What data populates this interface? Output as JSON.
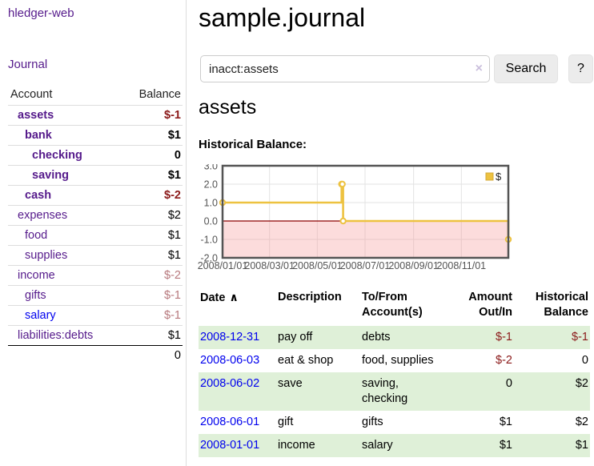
{
  "app": {
    "brand": "hledger-web"
  },
  "sidebar": {
    "journal_link": "Journal",
    "accounts_table": {
      "headers": {
        "account": "Account",
        "balance": "Balance"
      },
      "rows": [
        {
          "name": "assets",
          "balance": "$-1",
          "depth": 1,
          "bold": true,
          "neg": "strong"
        },
        {
          "name": "bank",
          "balance": "$1",
          "depth": 2,
          "bold": true
        },
        {
          "name": "checking",
          "balance": "0",
          "depth": 3,
          "bold": true
        },
        {
          "name": "saving",
          "balance": "$1",
          "depth": 3,
          "bold": true
        },
        {
          "name": "cash",
          "balance": "$-2",
          "depth": 2,
          "bold": true,
          "neg": "strong"
        },
        {
          "name": "expenses",
          "balance": "$2",
          "depth": 1
        },
        {
          "name": "food",
          "balance": "$1",
          "depth": 2
        },
        {
          "name": "supplies",
          "balance": "$1",
          "depth": 2
        },
        {
          "name": "income",
          "balance": "$-2",
          "depth": 1,
          "neg": "soft"
        },
        {
          "name": "gifts",
          "balance": "$-1",
          "depth": 2,
          "neg": "soft"
        },
        {
          "name": "salary",
          "balance": "$-1",
          "depth": 2,
          "neg": "soft",
          "link": "blue"
        },
        {
          "name": "liabilities:debts",
          "balance": "$1",
          "depth": 1
        }
      ],
      "total": "0"
    }
  },
  "header": {
    "title": "sample.journal"
  },
  "search": {
    "value": "inacct:assets",
    "button_label": "Search",
    "help_label": "?"
  },
  "icons": {
    "clear": "×",
    "sort_asc": "∧"
  },
  "account_view": {
    "title": "assets",
    "chart_heading": "Historical Balance:"
  },
  "chart_data": {
    "type": "line",
    "step": true,
    "title": "Historical Balance:",
    "legend": "$",
    "legend_position": "top-right",
    "grid": true,
    "ylim": [
      -2,
      3
    ],
    "y_ticks": [
      "3.0",
      "2.0",
      "1.0",
      "0.0",
      "-1.0",
      "-2.0"
    ],
    "x_range": [
      "2008/01/01",
      "2008/12/31"
    ],
    "x_ticks": [
      "2008/01/01",
      "2008/03/01",
      "2008/05/01",
      "2008/07/01",
      "2008/09/01",
      "2008/11/01"
    ],
    "series": [
      {
        "name": "$",
        "color": "#edc240",
        "points": [
          [
            "2008/01/01",
            1
          ],
          [
            "2008/06/01",
            2
          ],
          [
            "2008/06/02",
            2
          ],
          [
            "2008/06/03",
            0
          ],
          [
            "2008/12/31",
            -1
          ]
        ]
      }
    ],
    "colors": {
      "line": "#edc240",
      "point_fill": "#ffffff",
      "border": "#545454",
      "gridline": "#e3e3e3",
      "zero_line": "#8b0000",
      "negative_region": "rgba(245,150,150,0.33)",
      "tick_label": "#545454"
    }
  },
  "register_table": {
    "headers": {
      "date": "Date",
      "description": "Description",
      "accounts": "To/From Account(s)",
      "amount": "Amount Out/In",
      "balance": "Historical Balance"
    },
    "rows": [
      {
        "date": "2008-12-31",
        "description": "pay off",
        "accounts": "debts",
        "amount": "$-1",
        "balance": "$-1",
        "amount_neg": true,
        "balance_neg": true
      },
      {
        "date": "2008-06-03",
        "description": "eat & shop",
        "accounts": "food, supplies",
        "amount": "$-2",
        "balance": "0",
        "amount_neg": true
      },
      {
        "date": "2008-06-02",
        "description": "save",
        "accounts": "saving, checking",
        "amount": "0",
        "balance": "$2"
      },
      {
        "date": "2008-06-01",
        "description": "gift",
        "accounts": "gifts",
        "amount": "$1",
        "balance": "$2"
      },
      {
        "date": "2008-01-01",
        "description": "income",
        "accounts": "salary",
        "amount": "$1",
        "balance": "$1"
      }
    ]
  }
}
